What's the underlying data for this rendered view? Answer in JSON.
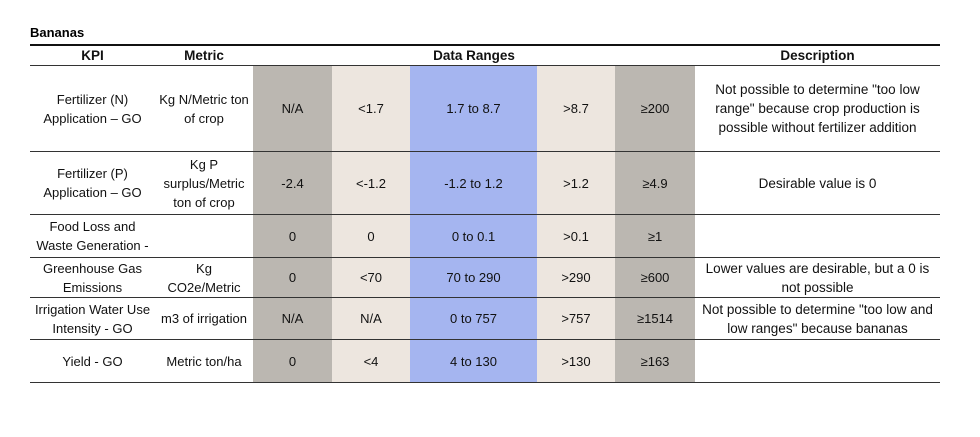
{
  "title": "Bananas",
  "table": {
    "header": [
      "KPI",
      "Metric",
      "Data Ranges",
      "Description"
    ],
    "rows": [
      [
        "Fertilizer (N) Application – GO",
        "Kg N/Metric ton of crop",
        "N/A",
        "<1.7",
        "1.7 to 8.7",
        ">8.7",
        "≥200",
        "Not possible to determine \"too low range\" because crop production is possible without fertilizer addition"
      ],
      [
        "Fertilizer (P) Application – GO",
        "Kg P surplus/Metric ton of crop",
        "-2.4",
        "<-1.2",
        "-1.2 to 1.2",
        ">1.2",
        "≥4.9",
        "Desirable value is 0"
      ],
      [
        "Food Loss and Waste Generation -",
        null,
        "0",
        "0",
        "0 to 0.1",
        ">0.1",
        "≥1",
        null
      ],
      [
        "Greenhouse Gas Emissions",
        "Kg CO2e/Metric",
        "0",
        "<70",
        "70 to 290",
        ">290",
        "≥600",
        "Lower values are desirable, but a 0 is not possible"
      ],
      [
        "Irrigation Water Use Intensity - GO",
        "m3 of irrigation",
        "N/A",
        "N/A",
        "0 to 757",
        ">757",
        "≥1514",
        "Not possible to determine \"too low and low ranges\" because bananas"
      ],
      [
        "Yield - GO",
        "Metric ton/ha",
        "0",
        "<4",
        "4  to 130",
        ">130",
        "≥163",
        null
      ]
    ]
  }
}
